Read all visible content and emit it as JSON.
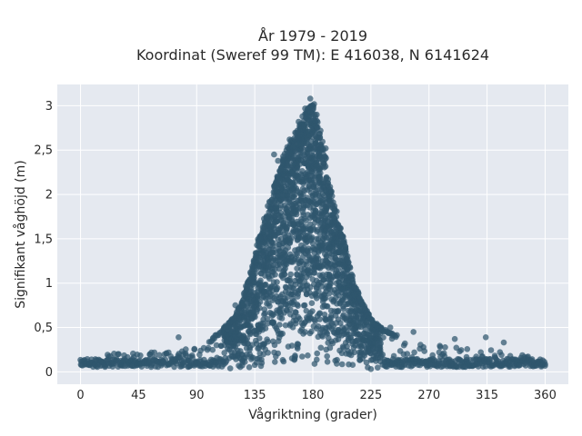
{
  "chart_data": {
    "type": "scatter",
    "title_line1": "År 1979 - 2019",
    "title_line2": "Koordinat (Sweref 99 TM): E 416038, N 6141624",
    "xlabel": "Vågriktning (grader)",
    "ylabel": "Signifikant våghöjd (m)",
    "xlim": [
      -18,
      378
    ],
    "ylim": [
      -0.14,
      3.24
    ],
    "x_ticks": [
      0,
      45,
      90,
      135,
      180,
      225,
      270,
      315,
      360
    ],
    "y_ticks": [
      0,
      0.5,
      1,
      1.5,
      2,
      2.5,
      3
    ],
    "y_tick_labels": [
      "0",
      "0,5",
      "1",
      "1,5",
      "2",
      "2,5",
      "3"
    ],
    "grid": true,
    "marker_color": "#2f566e",
    "plot_bg": "#e5e9f0",
    "envelope_upper": [
      [
        0,
        0.2
      ],
      [
        20,
        0.21
      ],
      [
        45,
        0.22
      ],
      [
        70,
        0.23
      ],
      [
        90,
        0.28
      ],
      [
        100,
        0.35
      ],
      [
        110,
        0.48
      ],
      [
        120,
        0.65
      ],
      [
        125,
        0.8
      ],
      [
        130,
        1.05
      ],
      [
        135,
        1.35
      ],
      [
        140,
        1.6
      ],
      [
        145,
        1.85
      ],
      [
        150,
        2.1
      ],
      [
        155,
        2.3
      ],
      [
        160,
        2.55
      ],
      [
        165,
        2.65
      ],
      [
        170,
        2.8
      ],
      [
        175,
        2.95
      ],
      [
        180,
        3.05
      ],
      [
        185,
        2.75
      ],
      [
        190,
        2.4
      ],
      [
        195,
        2.0
      ],
      [
        200,
        1.7
      ],
      [
        205,
        1.45
      ],
      [
        210,
        1.1
      ],
      [
        215,
        0.9
      ],
      [
        220,
        0.75
      ],
      [
        225,
        0.6
      ],
      [
        235,
        0.48
      ],
      [
        250,
        0.38
      ],
      [
        270,
        0.32
      ],
      [
        290,
        0.28
      ],
      [
        320,
        0.25
      ],
      [
        340,
        0.22
      ],
      [
        360,
        0.2
      ]
    ],
    "outliers": [
      [
        150,
        2.45
      ],
      [
        153,
        2.38
      ],
      [
        157,
        2.43
      ],
      [
        162,
        2.62
      ],
      [
        168,
        2.72
      ],
      [
        169,
        2.82
      ],
      [
        172,
        2.88
      ],
      [
        174,
        2.97
      ],
      [
        178,
        3.08
      ],
      [
        181,
        3.02
      ],
      [
        183,
        2.9
      ],
      [
        186,
        2.72
      ],
      [
        190,
        2.52
      ],
      [
        76,
        0.39
      ],
      [
        120,
        0.75
      ],
      [
        258,
        0.45
      ],
      [
        290,
        0.37
      ],
      [
        314,
        0.39
      ],
      [
        328,
        0.33
      ],
      [
        240,
        0.5
      ]
    ]
  }
}
